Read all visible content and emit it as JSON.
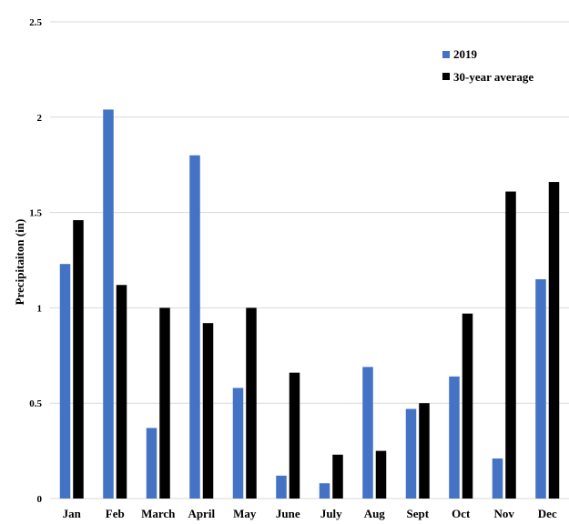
{
  "chart_data": {
    "type": "bar",
    "title": "",
    "xlabel": "",
    "ylabel": "Precipitaiton (in)",
    "ylim": [
      0,
      2.5
    ],
    "yticks": [
      "0",
      "0.5",
      "1",
      "1.5",
      "2",
      "2.5"
    ],
    "grid": true,
    "legend_position": "top-right",
    "categories": [
      "Jan",
      "Feb",
      "March",
      "April",
      "May",
      "June",
      "July",
      "Aug",
      "Sept",
      "Oct",
      "Nov",
      "Dec"
    ],
    "series": [
      {
        "name": "2019",
        "color": "#4472c4",
        "values": [
          1.23,
          2.04,
          0.37,
          1.8,
          0.58,
          0.12,
          0.08,
          0.69,
          0.47,
          0.64,
          0.21,
          1.15
        ]
      },
      {
        "name": "30-year average",
        "color": "#000000",
        "values": [
          1.46,
          1.12,
          1.0,
          0.92,
          1.0,
          0.66,
          0.23,
          0.25,
          0.5,
          0.97,
          1.61,
          1.66
        ]
      }
    ]
  }
}
